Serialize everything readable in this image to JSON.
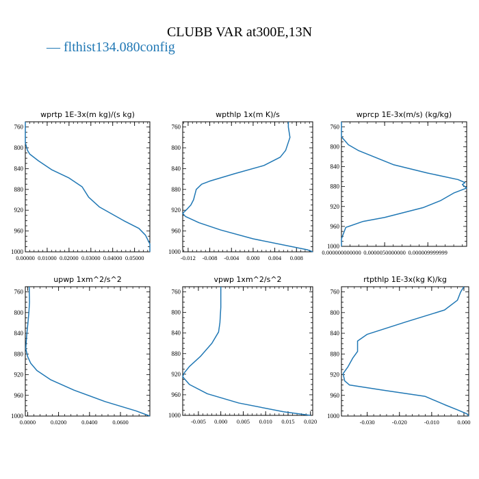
{
  "title": "CLUBB VAR at300E,13N",
  "legend_label": "— flthist134.080config",
  "colors": {
    "line": "#1f77b4",
    "axes": "#000000"
  },
  "chart_data": [
    {
      "type": "line",
      "title": "wprtp  1E-3x(m kg)/(s kg)",
      "xlim": [
        0,
        0.057
      ],
      "ylim": [
        1000,
        750
      ],
      "y_inverted": true,
      "yticks": [
        760,
        800,
        840,
        880,
        920,
        960,
        1000
      ],
      "xticks": [
        0,
        0.01,
        0.02,
        0.03,
        0.04,
        0.05
      ],
      "xtick_labels": [
        "0.00000",
        "0.01000",
        "0.02000",
        "0.03000",
        "0.04000",
        "0.05000"
      ],
      "series": [
        {
          "points": [
            [
              0.0,
              750
            ],
            [
              0.0,
              790
            ],
            [
              0.001,
              805
            ],
            [
              0.002,
              812
            ],
            [
              0.006,
              825
            ],
            [
              0.012,
              842
            ],
            [
              0.02,
              858
            ],
            [
              0.026,
              875
            ],
            [
              0.029,
              895
            ],
            [
              0.034,
              914
            ],
            [
              0.045,
              940
            ],
            [
              0.052,
              955
            ],
            [
              0.055,
              968
            ],
            [
              0.057,
              985
            ],
            [
              0.057,
              1000
            ]
          ]
        }
      ]
    },
    {
      "type": "line",
      "title": "wpthlp  1x(m K)/s",
      "xlim": [
        -0.013,
        0.011
      ],
      "ylim": [
        1000,
        750
      ],
      "y_inverted": true,
      "yticks": [
        760,
        800,
        840,
        880,
        920,
        960,
        1000
      ],
      "xticks": [
        -0.012,
        -0.008,
        -0.004,
        0.0,
        0.004,
        0.008
      ],
      "xtick_labels": [
        "-0.012",
        "-0.008",
        "-0.004",
        "0.000",
        "0.004",
        "0.008"
      ],
      "series": [
        {
          "points": [
            [
              0.0065,
              750
            ],
            [
              0.0065,
              760
            ],
            [
              0.0068,
              780
            ],
            [
              0.006,
              805
            ],
            [
              0.005,
              818
            ],
            [
              0.002,
              834
            ],
            [
              -0.0035,
              850
            ],
            [
              -0.008,
              864
            ],
            [
              -0.0095,
              870
            ],
            [
              -0.0105,
              880
            ],
            [
              -0.011,
              900
            ],
            [
              -0.0115,
              910
            ],
            [
              -0.0122,
              918
            ],
            [
              -0.013,
              926
            ],
            [
              -0.0125,
              932
            ],
            [
              -0.01,
              944
            ],
            [
              -0.006,
              958
            ],
            [
              0.0,
              975
            ],
            [
              0.01,
              996
            ],
            [
              0.011,
              1000
            ]
          ]
        }
      ]
    },
    {
      "type": "line",
      "title": "wprcp  1E-3x(m/s) (kg/kg)",
      "xlim": [
        0,
        1.45e-05
      ],
      "ylim": [
        1000,
        750
      ],
      "y_inverted": true,
      "yticks": [
        760,
        800,
        840,
        880,
        920,
        960,
        1000
      ],
      "xticks": [
        0,
        5e-06,
        1e-05
      ],
      "xtick_labels": [
        "0.000000000000",
        "0.0000050000000",
        "0.000009999999"
      ],
      "series": [
        {
          "points": [
            [
              0.0,
              750
            ],
            [
              0.0,
              780
            ],
            [
              8e-07,
              796
            ],
            [
              2e-06,
              808
            ],
            [
              6e-06,
              836
            ],
            [
              1e-05,
              853
            ],
            [
              1.35e-05,
              866
            ],
            [
              1.43e-05,
              872
            ],
            [
              1.4e-05,
              876
            ],
            [
              1.45e-05,
              883
            ],
            [
              1.3e-05,
              893
            ],
            [
              1.15e-05,
              908
            ],
            [
              9.5e-06,
              922
            ],
            [
              5e-06,
              942
            ],
            [
              2.5e-06,
              950
            ],
            [
              5e-07,
              962
            ],
            [
              0.0,
              985
            ],
            [
              0.0,
              1000
            ]
          ]
        }
      ]
    },
    {
      "type": "line",
      "title": "upwp  1xm^2/s^2",
      "xlim": [
        -0.0015,
        0.079
      ],
      "ylim": [
        1000,
        750
      ],
      "y_inverted": true,
      "yticks": [
        760,
        800,
        840,
        880,
        920,
        960,
        1000
      ],
      "xticks": [
        0,
        0.02,
        0.04,
        0.06
      ],
      "xtick_labels": [
        "0.0000",
        "0.0200",
        "0.0400",
        "0.0600"
      ],
      "series": [
        {
          "points": [
            [
              0.001,
              750
            ],
            [
              0.0012,
              780
            ],
            [
              0.0008,
              800
            ],
            [
              0.0002,
              820
            ],
            [
              -0.0005,
              840
            ],
            [
              -0.001,
              860
            ],
            [
              -0.0012,
              870
            ],
            [
              0.0,
              885
            ],
            [
              0.002,
              898
            ],
            [
              0.006,
              912
            ],
            [
              0.015,
              930
            ],
            [
              0.03,
              950
            ],
            [
              0.05,
              972
            ],
            [
              0.07,
              990
            ],
            [
              0.079,
              1000
            ]
          ]
        }
      ]
    },
    {
      "type": "line",
      "title": "vpwp  1xm^2/s^2",
      "xlim": [
        -0.0085,
        0.0205
      ],
      "ylim": [
        1000,
        750
      ],
      "y_inverted": true,
      "yticks": [
        760,
        800,
        840,
        880,
        920,
        960,
        1000
      ],
      "xticks": [
        -0.005,
        0.0,
        0.005,
        0.01,
        0.015,
        0.02
      ],
      "xtick_labels": [
        "-0.005",
        "0.000",
        "0.005",
        "0.010",
        "0.015",
        "0.020"
      ],
      "series": [
        {
          "points": [
            [
              0.0,
              750
            ],
            [
              0.0,
              790
            ],
            [
              -0.0002,
              820
            ],
            [
              -0.0005,
              838
            ],
            [
              -0.002,
              860
            ],
            [
              -0.0045,
              885
            ],
            [
              -0.007,
              905
            ],
            [
              -0.0082,
              918
            ],
            [
              -0.0085,
              925
            ],
            [
              -0.007,
              940
            ],
            [
              -0.003,
              958
            ],
            [
              0.004,
              976
            ],
            [
              0.014,
              993
            ],
            [
              0.02,
              1000
            ]
          ]
        }
      ]
    },
    {
      "type": "line",
      "title": "rtpthlp  1E-3x(kg K)/kg",
      "xlim": [
        -0.038,
        0.0015
      ],
      "ylim": [
        1000,
        750
      ],
      "y_inverted": true,
      "yticks": [
        760,
        800,
        840,
        880,
        920,
        960,
        1000
      ],
      "xticks": [
        -0.03,
        -0.02,
        -0.01,
        0.0
      ],
      "xtick_labels": [
        "-0.030",
        "-0.020",
        "-0.010",
        "0.000"
      ],
      "series": [
        {
          "points": [
            [
              0.0,
              750
            ],
            [
              -0.001,
              760
            ],
            [
              -0.002,
              776
            ],
            [
              -0.006,
              795
            ],
            [
              -0.018,
              818
            ],
            [
              -0.03,
              842
            ],
            [
              -0.033,
              855
            ],
            [
              -0.033,
              875
            ],
            [
              -0.0345,
              888
            ],
            [
              -0.036,
              905
            ],
            [
              -0.0375,
              918
            ],
            [
              -0.037,
              932
            ],
            [
              -0.0355,
              940
            ],
            [
              -0.025,
              950
            ],
            [
              -0.012,
              962
            ],
            [
              -0.006,
              978
            ],
            [
              -0.002,
              988
            ],
            [
              0.001,
              996
            ],
            [
              0.0015,
              1000
            ]
          ]
        }
      ]
    }
  ]
}
